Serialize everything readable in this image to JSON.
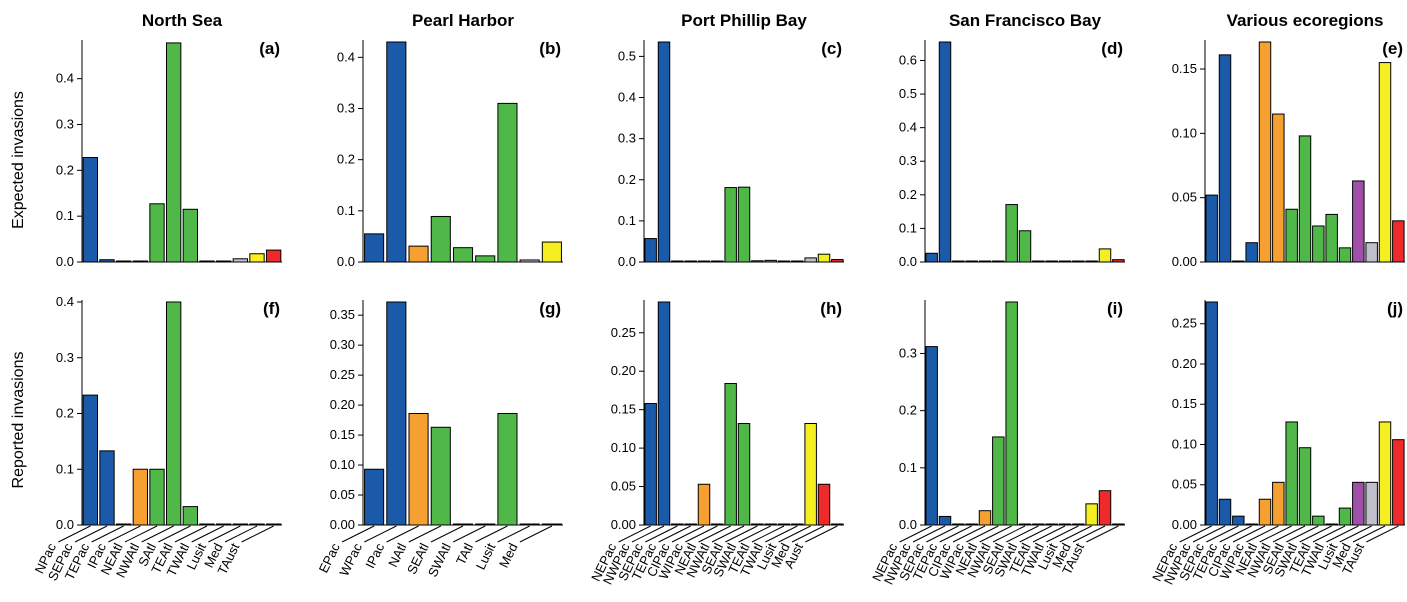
{
  "colors": {
    "blue": "#1a5aa8",
    "orange": "#f5a030",
    "green": "#50b848",
    "purple": "#a050a8",
    "grey": "#c0c0cc",
    "yellow": "#f5ee20",
    "red": "#ee2a2a"
  },
  "row_labels": [
    "Expected invasions",
    "Reported invasions"
  ],
  "column_titles": [
    "North Sea",
    "Pearl Harbor",
    "Port Phillip Bay",
    "San Francisco Bay",
    "Various ecoregions"
  ],
  "chart_data": [
    {
      "type": "bar",
      "panel": "(a)",
      "title": "North Sea",
      "ylabel": "Expected invasions",
      "ylim": [
        0,
        0.48
      ],
      "yticks": [
        0.0,
        0.1,
        0.2,
        0.3,
        0.4
      ],
      "ytick_labels": [
        "0.0",
        "0.1",
        "0.2",
        "0.3",
        "0.4"
      ],
      "categories": [
        "NPac",
        "SEPac",
        "TEPac",
        "IPac",
        "NEAtl",
        "NWAtl",
        "SAtl",
        "TEAtl",
        "TWAtl",
        "Lusit",
        "Med",
        "TAust"
      ],
      "values": [
        0.228,
        0.005,
        0.001,
        0.001,
        0.127,
        0.478,
        0.115,
        0.001,
        0.001,
        0.007,
        0.018,
        0.026
      ],
      "colors": [
        "blue",
        "blue",
        "blue",
        "blue",
        "green",
        "green",
        "green",
        "green",
        "green",
        "grey",
        "yellow",
        "red"
      ]
    },
    {
      "type": "bar",
      "panel": "(b)",
      "title": "Pearl Harbor",
      "ylabel": "",
      "ylim": [
        0,
        0.43
      ],
      "yticks": [
        0.0,
        0.1,
        0.2,
        0.3,
        0.4
      ],
      "ytick_labels": [
        "0.0",
        "0.1",
        "0.2",
        "0.3",
        "0.4"
      ],
      "categories": [
        "EPac",
        "WPac",
        "IPac",
        "NAtl",
        "SEAtl",
        "SWAtl",
        "TAtl",
        "Lusit",
        "Med"
      ],
      "values": [
        0.055,
        0.43,
        0.031,
        0.089,
        0.028,
        0.012,
        0.31,
        0.004,
        0.039
      ],
      "colors": [
        "blue",
        "blue",
        "orange",
        "green",
        "green",
        "green",
        "green",
        "grey",
        "yellow"
      ]
    },
    {
      "type": "bar",
      "panel": "(c)",
      "title": "Port Phillip Bay",
      "ylabel": "",
      "ylim": [
        0,
        0.535
      ],
      "yticks": [
        0.0,
        0.1,
        0.2,
        0.3,
        0.4,
        0.5
      ],
      "ytick_labels": [
        "0.0",
        "0.1",
        "0.2",
        "0.3",
        "0.4",
        "0.5"
      ],
      "categories": [
        "NEPac",
        "NWPac",
        "SEPac",
        "TEPac",
        "CIPac",
        "WIPac",
        "NEAtl",
        "NWAtl",
        "SEAtl",
        "SWAtl",
        "TEAtl",
        "TWAtl",
        "Lusit",
        "Med",
        "Aust"
      ],
      "values": [
        0.057,
        0.535,
        0.001,
        0.001,
        0.001,
        0.001,
        0.181,
        0.182,
        0.003,
        0.004,
        0.001,
        0.001,
        0.01,
        0.019,
        0.006
      ],
      "colors": [
        "blue",
        "blue",
        "blue",
        "blue",
        "blue",
        "blue",
        "green",
        "green",
        "green",
        "green",
        "green",
        "green",
        "grey",
        "yellow",
        "red"
      ]
    },
    {
      "type": "bar",
      "panel": "(d)",
      "title": "San Francisco Bay",
      "ylabel": "",
      "ylim": [
        0,
        0.655
      ],
      "yticks": [
        0.0,
        0.1,
        0.2,
        0.3,
        0.4,
        0.5,
        0.6
      ],
      "ytick_labels": [
        "0.0",
        "0.1",
        "0.2",
        "0.3",
        "0.4",
        "0.5",
        "0.6"
      ],
      "categories": [
        "NEPac",
        "NWPac",
        "SEPac",
        "TEPac",
        "CIPac",
        "WIPac",
        "NEAtl",
        "NWAtl",
        "SEAtl",
        "SWAtl",
        "TEAtl",
        "TWAtl",
        "Lusit",
        "Med",
        "TAust"
      ],
      "values": [
        0.026,
        0.655,
        0.002,
        0.001,
        0.001,
        0.001,
        0.171,
        0.093,
        0.002,
        0.002,
        0.001,
        0.001,
        0.002,
        0.039,
        0.007
      ],
      "colors": [
        "blue",
        "blue",
        "blue",
        "blue",
        "blue",
        "blue",
        "green",
        "green",
        "green",
        "green",
        "green",
        "green",
        "grey",
        "yellow",
        "red"
      ]
    },
    {
      "type": "bar",
      "panel": "(e)",
      "title": "Various ecoregions",
      "ylabel": "",
      "ylim": [
        0,
        0.171
      ],
      "yticks": [
        0.0,
        0.05,
        0.1,
        0.15
      ],
      "ytick_labels": [
        "0.00",
        "0.05",
        "0.10",
        "0.15"
      ],
      "categories": [
        "NEPac",
        "NWPac",
        "SEPac",
        "TEPac",
        "CIPac",
        "WIPac",
        "NEAtl",
        "NWAtl",
        "SEAtl",
        "SWAtl",
        "TEAtl",
        "TWAtl",
        "Lusit",
        "Med",
        "TAust"
      ],
      "values": [
        0.052,
        0.161,
        0.0,
        0.015,
        0.171,
        0.115,
        0.041,
        0.098,
        0.028,
        0.037,
        0.011,
        0.063,
        0.015,
        0.155,
        0.032
      ],
      "colors": [
        "blue",
        "blue",
        "blue",
        "blue",
        "orange",
        "orange",
        "green",
        "green",
        "green",
        "green",
        "green",
        "purple",
        "grey",
        "yellow",
        "red"
      ]
    },
    {
      "type": "bar",
      "panel": "(f)",
      "title": "",
      "ylabel": "Reported invasions",
      "ylim": [
        0,
        0.4
      ],
      "yticks": [
        0.0,
        0.1,
        0.2,
        0.3,
        0.4
      ],
      "ytick_labels": [
        "0.0",
        "0.1",
        "0.2",
        "0.3",
        "0.4"
      ],
      "categories": [
        "NPac",
        "SEPac",
        "TEPac",
        "IPac",
        "NEAtl",
        "NWAtl",
        "SAtl",
        "TEAtl",
        "TWAtl",
        "Lusit",
        "Med",
        "TAust"
      ],
      "values": [
        0.233,
        0.133,
        0.0,
        0.1,
        0.1,
        0.4,
        0.033,
        0.0,
        0.0,
        0.0,
        0.0,
        0.0
      ],
      "colors": [
        "blue",
        "blue",
        "blue",
        "orange",
        "green",
        "green",
        "green",
        "green",
        "green",
        "grey",
        "yellow",
        "red"
      ]
    },
    {
      "type": "bar",
      "panel": "(g)",
      "title": "",
      "ylabel": "",
      "ylim": [
        0,
        0.372
      ],
      "yticks": [
        0.0,
        0.05,
        0.1,
        0.15,
        0.2,
        0.25,
        0.3,
        0.35
      ],
      "ytick_labels": [
        "0.00",
        "0.05",
        "0.10",
        "0.15",
        "0.20",
        "0.25",
        "0.30",
        "0.35"
      ],
      "categories": [
        "EPac",
        "WPac",
        "IPac",
        "NAtl",
        "SEAtl",
        "SWAtl",
        "TAtl",
        "Lusit",
        "Med"
      ],
      "values": [
        0.093,
        0.372,
        0.186,
        0.163,
        0.0,
        0.0,
        0.186,
        0.0,
        0.0
      ],
      "colors": [
        "blue",
        "blue",
        "orange",
        "green",
        "green",
        "green",
        "green",
        "grey",
        "yellow"
      ]
    },
    {
      "type": "bar",
      "panel": "(h)",
      "title": "",
      "ylabel": "",
      "ylim": [
        0,
        0.29
      ],
      "yticks": [
        0.0,
        0.05,
        0.1,
        0.15,
        0.2,
        0.25
      ],
      "ytick_labels": [
        "0.00",
        "0.05",
        "0.10",
        "0.15",
        "0.20",
        "0.25"
      ],
      "categories": [
        "NEPac",
        "NWPac",
        "SEPac",
        "TEPac",
        "CIPac",
        "WIPac",
        "NEAtl",
        "NWAtl",
        "SEAtl",
        "SWAtl",
        "TEAtl",
        "TWAtl",
        "Lusit",
        "Med",
        "Aust"
      ],
      "values": [
        0.158,
        0.29,
        0.0,
        0.0,
        0.053,
        0.0,
        0.184,
        0.132,
        0.0,
        0.0,
        0.0,
        0.0,
        0.132,
        0.053,
        0.0
      ],
      "colors": [
        "blue",
        "blue",
        "blue",
        "blue",
        "orange",
        "orange",
        "green",
        "green",
        "green",
        "green",
        "green",
        "green",
        "yellow",
        "red",
        "red"
      ]
    },
    {
      "type": "bar",
      "panel": "(i)",
      "title": "",
      "ylabel": "",
      "ylim": [
        0,
        0.39
      ],
      "yticks": [
        0.0,
        0.1,
        0.2,
        0.3
      ],
      "ytick_labels": [
        "0.0",
        "0.1",
        "0.2",
        "0.3"
      ],
      "categories": [
        "NEPac",
        "NWPac",
        "SEPac",
        "TEPac",
        "CIPac",
        "WIPac",
        "NEAtl",
        "NWAtl",
        "SEAtl",
        "SWAtl",
        "TEAtl",
        "TWAtl",
        "Lusit",
        "Med",
        "TAust"
      ],
      "values": [
        0.312,
        0.015,
        0.0,
        0.0,
        0.025,
        0.154,
        0.39,
        0.0,
        0.0,
        0.0,
        0.0,
        0.0,
        0.037,
        0.06,
        0.0
      ],
      "colors": [
        "blue",
        "blue",
        "blue",
        "blue",
        "orange",
        "green",
        "green",
        "green",
        "green",
        "green",
        "green",
        "green",
        "yellow",
        "red",
        "red"
      ]
    },
    {
      "type": "bar",
      "panel": "(j)",
      "title": "",
      "ylabel": "",
      "ylim": [
        0,
        0.277
      ],
      "yticks": [
        0.0,
        0.05,
        0.1,
        0.15,
        0.2,
        0.25
      ],
      "ytick_labels": [
        "0.00",
        "0.05",
        "0.10",
        "0.15",
        "0.20",
        "0.25"
      ],
      "categories": [
        "NEPac",
        "NWPac",
        "SEPac",
        "TEPac",
        "CIPac",
        "WIPac",
        "NEAtl",
        "NWAtl",
        "SEAtl",
        "SWAtl",
        "TEAtl",
        "TWAtl",
        "Lusit",
        "Med",
        "TAust"
      ],
      "values": [
        0.277,
        0.032,
        0.011,
        0.0,
        0.032,
        0.053,
        0.128,
        0.096,
        0.011,
        0.0,
        0.021,
        0.053,
        0.053,
        0.128,
        0.106
      ],
      "colors": [
        "blue",
        "blue",
        "blue",
        "blue",
        "orange",
        "orange",
        "green",
        "green",
        "green",
        "green",
        "green",
        "purple",
        "grey",
        "yellow",
        "red"
      ]
    }
  ]
}
